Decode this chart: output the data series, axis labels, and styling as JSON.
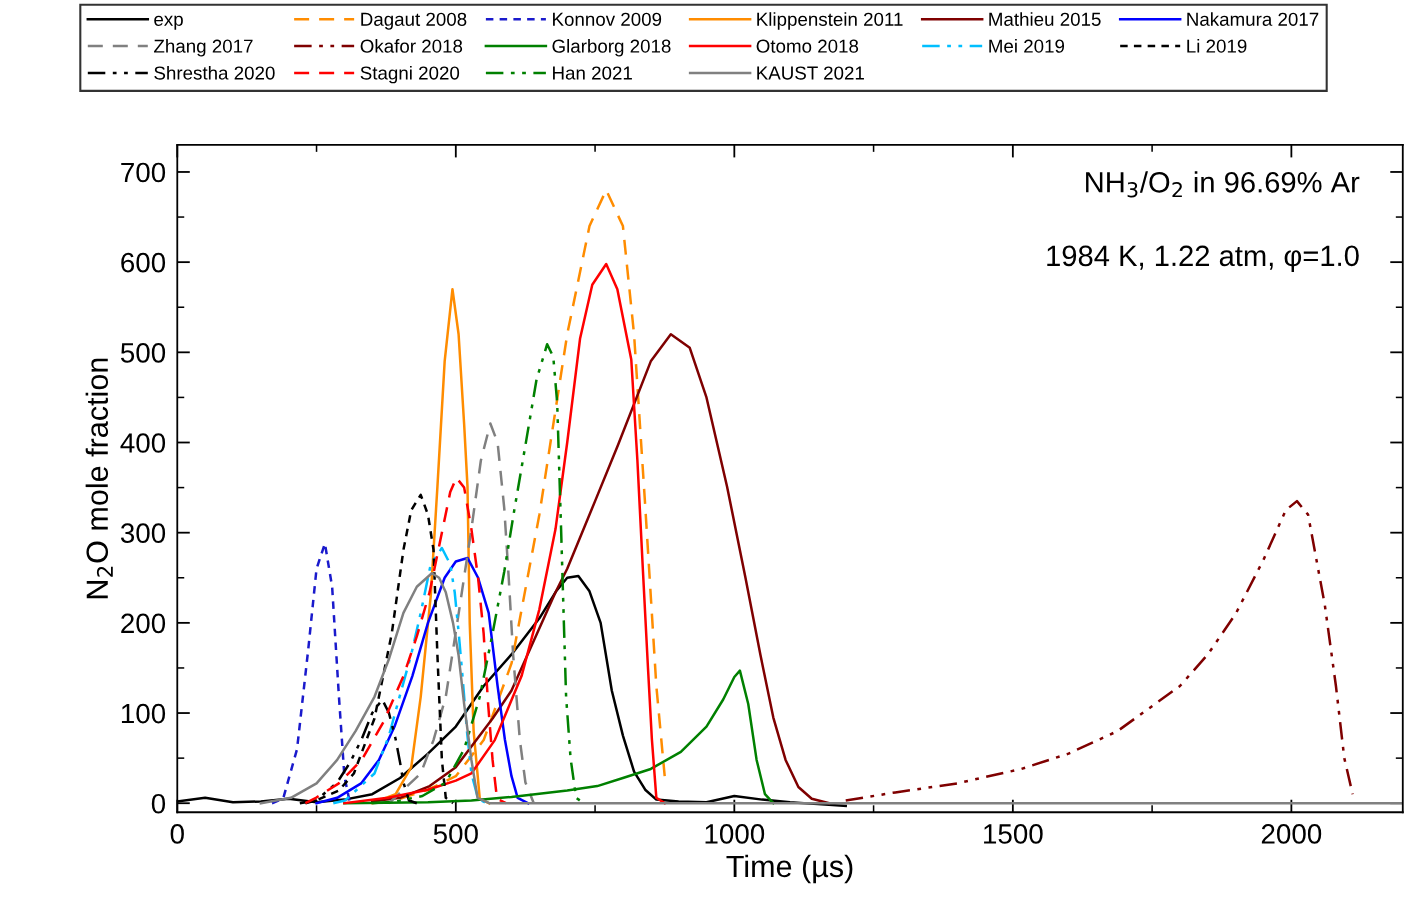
{
  "chart_data": {
    "type": "line",
    "xlabel": "Time (µs)",
    "ylabel": "N$_{2}$O mole fraction",
    "annotations": [
      "NH$_{3}$/O$_{2}$ in 96.69% Ar",
      "1984 K, 1.22 atm, φ=1.0"
    ],
    "xlim": [
      0,
      2200
    ],
    "xticks": [
      0,
      500,
      1000,
      1500,
      2000
    ],
    "ylim": [
      -10,
      730
    ],
    "yticks": [
      0,
      100,
      200,
      300,
      400,
      500,
      600,
      700
    ],
    "grid": false,
    "legend": "top",
    "marker": "none",
    "series": [
      {
        "name": "exp",
        "color": "#000000",
        "line_style": "solid",
        "x": [
          0,
          50,
          100,
          150,
          200,
          250,
          300,
          350,
          400,
          450,
          500,
          550,
          600,
          650,
          680,
          700,
          720,
          740,
          760,
          780,
          800,
          820,
          840,
          860,
          900,
          950,
          1000,
          1050,
          1100,
          1150,
          1200
        ],
        "values": [
          2,
          6,
          1,
          2,
          5,
          1,
          4,
          10,
          28,
          55,
          85,
          130,
          165,
          205,
          235,
          250,
          252,
          235,
          200,
          125,
          75,
          35,
          15,
          4,
          2,
          1,
          8,
          4,
          1,
          -1,
          -3
        ]
      },
      {
        "name": "Dagaut 2008",
        "color": "#ff8c00",
        "line_style": "dashed",
        "x": [
          400,
          450,
          500,
          550,
          600,
          650,
          700,
          740,
          770,
          800,
          820,
          840,
          860,
          875
        ],
        "values": [
          5,
          15,
          30,
          70,
          155,
          320,
          520,
          640,
          680,
          640,
          520,
          330,
          130,
          30
        ]
      },
      {
        "name": "Konnov 2009",
        "color": "#1a1acc",
        "line_style": "dotted",
        "x": [
          170,
          190,
          215,
          235,
          250,
          265,
          278,
          290,
          300,
          310
        ],
        "values": [
          0,
          5,
          60,
          170,
          260,
          288,
          240,
          120,
          30,
          0
        ]
      },
      {
        "name": "Klippenstein 2011",
        "color": "#ff8c00",
        "line_style": "solid",
        "x": [
          350,
          392,
          420,
          437,
          455,
          467,
          480,
          494,
          505,
          515,
          521,
          525,
          532,
          543,
          560
        ],
        "values": [
          0,
          10,
          40,
          118,
          230,
          351,
          490,
          570,
          520,
          420,
          351,
          200,
          80,
          5,
          0
        ]
      },
      {
        "name": "Mathieu 2015",
        "color": "#7f0000",
        "line_style": "solid",
        "x": [
          350,
          400,
          453,
          500,
          566,
          600,
          679,
          700,
          750,
          791,
          850,
          886,
          920,
          950,
          987,
          1020,
          1047,
          1070,
          1092,
          1115,
          1139,
          1170
        ],
        "values": [
          2,
          6,
          19,
          40,
          94,
          125,
          234,
          260,
          335,
          397,
          490,
          520,
          505,
          450,
          351,
          250,
          164,
          95,
          48,
          18,
          5,
          0
        ]
      },
      {
        "name": "Nakamura 2017",
        "color": "#0000ff",
        "line_style": "solid",
        "x": [
          250,
          287,
          330,
          362,
          390,
          422,
          450,
          480,
          500,
          521,
          540,
          559,
          575,
          588,
          600,
          611,
          630
        ],
        "values": [
          0,
          6,
          22,
          48,
          85,
          141,
          200,
          250,
          268,
          272,
          250,
          211,
          130,
          71,
          30,
          6,
          0
        ]
      },
      {
        "name": "Zhang 2017",
        "color": "#808080",
        "line_style": "dashed",
        "x": [
          380,
          437,
          460,
          482,
          505,
          528,
          545,
          562,
          575,
          587,
          595,
          603,
          615,
          625,
          640
        ],
        "values": [
          0,
          33,
          70,
          118,
          210,
          304,
          380,
          421,
          400,
          327,
          250,
          164,
          70,
          23,
          0
        ]
      },
      {
        "name": "Okafor 2018",
        "color": "#7f0000",
        "line_style": "dashdot",
        "x": [
          1200,
          1289,
          1400,
          1515,
          1600,
          1688,
          1800,
          1850,
          1900,
          1950,
          1990,
          2010,
          2030,
          2060,
          2080,
          2095,
          2110
        ],
        "values": [
          3,
          12,
          22,
          38,
          55,
          80,
          130,
          165,
          210,
          270,
          325,
          335,
          320,
          220,
          130,
          50,
          10
        ]
      },
      {
        "name": "Glarborg 2018",
        "color": "#008000",
        "line_style": "solid",
        "x": [
          300,
          450,
          528,
          600,
          700,
          754,
          800,
          850,
          904,
          950,
          980,
          1000,
          1010,
          1025,
          1040,
          1055,
          1070
        ],
        "values": [
          0,
          1,
          3,
          7,
          14,
          19,
          28,
          38,
          57,
          85,
          115,
          140,
          147,
          110,
          48,
          10,
          0
        ]
      },
      {
        "name": "Otomo 2018",
        "color": "#ff0000",
        "line_style": "solid",
        "x": [
          300,
          378,
          450,
          500,
          528,
          570,
          618,
          650,
          679,
          700,
          723,
          745,
          770,
          790,
          815,
          826,
          836,
          845,
          852,
          860,
          875
        ],
        "values": [
          0,
          6,
          15,
          25,
          33,
          70,
          141,
          215,
          304,
          400,
          515,
          575,
          598,
          570,
          492,
          380,
          257,
          150,
          71,
          6,
          0
        ]
      },
      {
        "name": "Mei 2019",
        "color": "#00bfff",
        "line_style": "dashdot",
        "x": [
          280,
          301,
          354,
          380,
          399,
          420,
          437,
          455,
          475,
          490,
          498,
          505,
          512,
          520,
          528,
          540,
          555
        ],
        "values": [
          0,
          3,
          33,
          75,
          118,
          165,
          211,
          265,
          283,
          265,
          234,
          190,
          141,
          80,
          33,
          5,
          0
        ]
      },
      {
        "name": "Li 2019",
        "color": "#000000",
        "line_style": "dotted",
        "x": [
          230,
          249,
          290,
          317,
          354,
          385,
          406,
          420,
          437,
          450,
          460,
          467,
          475,
          482,
          495
        ],
        "values": [
          0,
          3,
          14,
          33,
          94,
          188,
          281,
          325,
          342,
          320,
          281,
          164,
          48,
          6,
          0
        ]
      },
      {
        "name": "Shrestha 2020",
        "color": "#000000",
        "line_style": "dashdot",
        "x": [
          220,
          249,
          287,
          310,
          331,
          350,
          368,
          380,
          392,
          400,
          406,
          416,
          430
        ],
        "values": [
          0,
          3,
          23,
          45,
          71,
          100,
          115,
          100,
          71,
          45,
          23,
          3,
          0
        ]
      },
      {
        "name": "Stagni 2020",
        "color": "#ff0000",
        "line_style": "dashed",
        "x": [
          230,
          249,
          290,
          331,
          370,
          406,
          430,
          453,
          475,
          490,
          501,
          515,
          528,
          540,
          550,
          558,
          566,
          574,
          590
        ],
        "values": [
          0,
          6,
          22,
          48,
          90,
          141,
          185,
          234,
          300,
          345,
          361,
          350,
          304,
          250,
          188,
          110,
          48,
          5,
          0
        ]
      },
      {
        "name": "Han 2021",
        "color": "#008000",
        "line_style": "dashdot",
        "x": [
          350,
          392,
          440,
          482,
          515,
          543,
          565,
          587,
          605,
          625,
          645,
          664,
          675,
          682,
          689,
          694,
          698,
          706,
          716,
          730
        ],
        "values": [
          0,
          2,
          8,
          23,
          60,
          118,
          185,
          257,
          325,
          397,
          470,
          509,
          495,
          444,
          304,
          200,
          118,
          50,
          6,
          0
        ]
      },
      {
        "name": "KAUST 2021",
        "color": "#808080",
        "line_style": "solid",
        "x": [
          150,
          204,
          250,
          287,
          320,
          354,
          380,
          406,
          430,
          457,
          470,
          482,
          495,
          505,
          515,
          528,
          539,
          560,
          2200
        ],
        "values": [
          0,
          6,
          22,
          48,
          80,
          118,
          160,
          211,
          240,
          255,
          250,
          234,
          200,
          164,
          110,
          48,
          6,
          0,
          0
        ]
      }
    ]
  }
}
